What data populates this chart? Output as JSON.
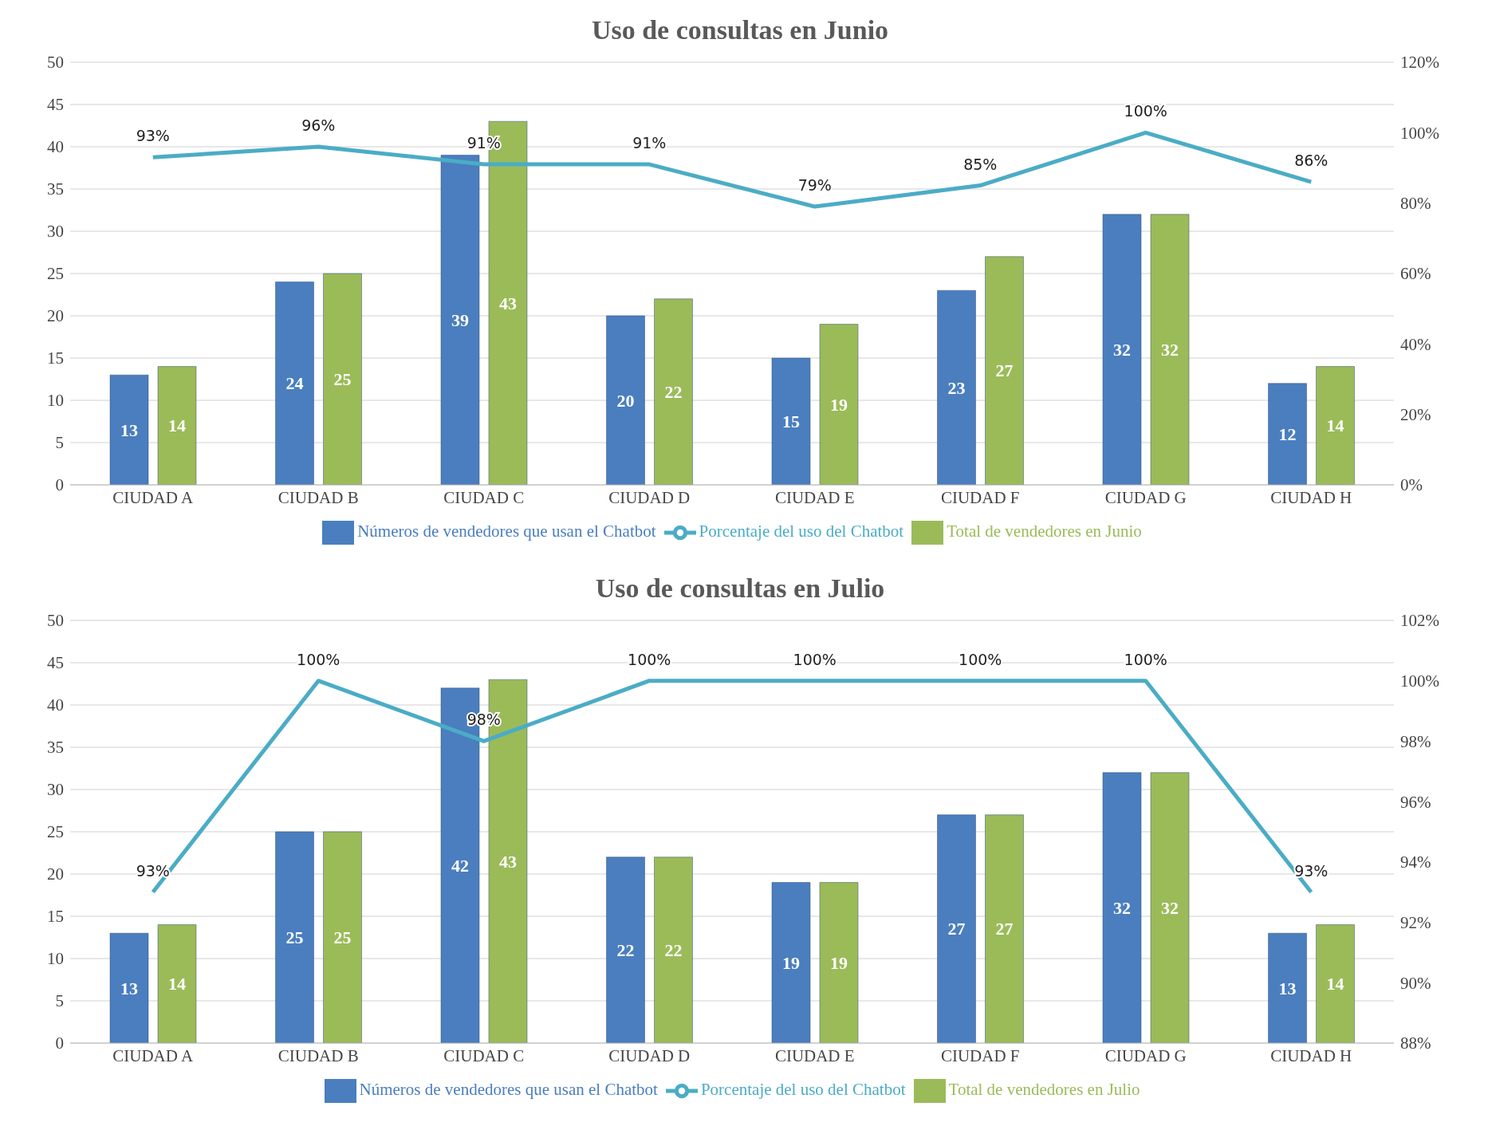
{
  "chart_data": [
    {
      "type": "bar",
      "title": "Uso de consultas en Junio",
      "categories": [
        "CIUDAD A",
        "CIUDAD B",
        "CIUDAD C",
        "CIUDAD D",
        "CIUDAD E",
        "CIUDAD F",
        "CIUDAD G",
        "CIUDAD H"
      ],
      "series": [
        {
          "name": "Números de vendedores que usan el Chatbot",
          "color": "#4a7ebf",
          "values": [
            13,
            24,
            39,
            20,
            15,
            23,
            32,
            12
          ],
          "value_labels": [
            "13",
            "24",
            "39",
            "20",
            "15",
            "23",
            "32",
            "12"
          ]
        },
        {
          "name": "Total de vendedores en Junio",
          "color": "#9bbb59",
          "values": [
            14,
            25,
            43,
            22,
            19,
            27,
            32,
            14
          ],
          "value_labels": [
            "14",
            "25",
            "43",
            "22",
            "19",
            "27",
            "32",
            "14"
          ]
        },
        {
          "name": "Porcentaje del uso del Chatbot",
          "type": "line",
          "axis": "y2",
          "color": "#4bacc6",
          "values": [
            93,
            96,
            91,
            91,
            79,
            85,
            100,
            86
          ],
          "value_labels": [
            "93%",
            "96%",
            "91%",
            "91%",
            "79%",
            "85%",
            "100%",
            "86%"
          ]
        }
      ],
      "ylim": [
        0,
        50
      ],
      "yticks": [
        0,
        5,
        10,
        15,
        20,
        25,
        30,
        35,
        40,
        45,
        50
      ],
      "y2lim": [
        0,
        120
      ],
      "y2ticks": [
        {
          "value": 0,
          "label": "0%"
        },
        {
          "value": 20,
          "label": "20%"
        },
        {
          "value": 40,
          "label": "40%"
        },
        {
          "value": 60,
          "label": "60%"
        },
        {
          "value": 80,
          "label": "80%"
        },
        {
          "value": 100,
          "label": "100%"
        },
        {
          "value": 120,
          "label": "120%"
        }
      ],
      "grid": "y",
      "legend": "bottom"
    },
    {
      "type": "bar",
      "title": "Uso de consultas en Julio",
      "categories": [
        "CIUDAD A",
        "CIUDAD B",
        "CIUDAD C",
        "CIUDAD D",
        "CIUDAD E",
        "CIUDAD F",
        "CIUDAD G",
        "CIUDAD H"
      ],
      "series": [
        {
          "name": "Números de vendedores que usan el Chatbot",
          "color": "#4a7ebf",
          "values": [
            13,
            25,
            42,
            22,
            19,
            27,
            32,
            13
          ],
          "value_labels": [
            "13",
            "25",
            "42",
            "22",
            "19",
            "27",
            "32",
            "13"
          ]
        },
        {
          "name": "Total de vendedores en Julio",
          "color": "#9bbb59",
          "values": [
            14,
            25,
            43,
            22,
            19,
            27,
            32,
            14
          ],
          "value_labels": [
            "14",
            "25",
            "43",
            "22",
            "19",
            "27",
            "32",
            "14"
          ]
        },
        {
          "name": "Porcentaje del uso del Chatbot",
          "type": "line",
          "axis": "y2",
          "color": "#4bacc6",
          "values": [
            93,
            100,
            98,
            100,
            100,
            100,
            100,
            93
          ],
          "value_labels": [
            "93%",
            "100%",
            "98%",
            "100%",
            "100%",
            "100%",
            "100%",
            "93%"
          ]
        }
      ],
      "ylim": [
        0,
        50
      ],
      "yticks": [
        0,
        5,
        10,
        15,
        20,
        25,
        30,
        35,
        40,
        45,
        50
      ],
      "y2lim": [
        88,
        102
      ],
      "y2ticks": [
        {
          "value": 88,
          "label": "88%"
        },
        {
          "value": 90,
          "label": "90%"
        },
        {
          "value": 92,
          "label": "92%"
        },
        {
          "value": 94,
          "label": "94%"
        },
        {
          "value": 96,
          "label": "96%"
        },
        {
          "value": 98,
          "label": "98%"
        },
        {
          "value": 100,
          "label": "100%"
        },
        {
          "value": 102,
          "label": "102%"
        }
      ],
      "grid": "y",
      "legend": "bottom"
    }
  ]
}
